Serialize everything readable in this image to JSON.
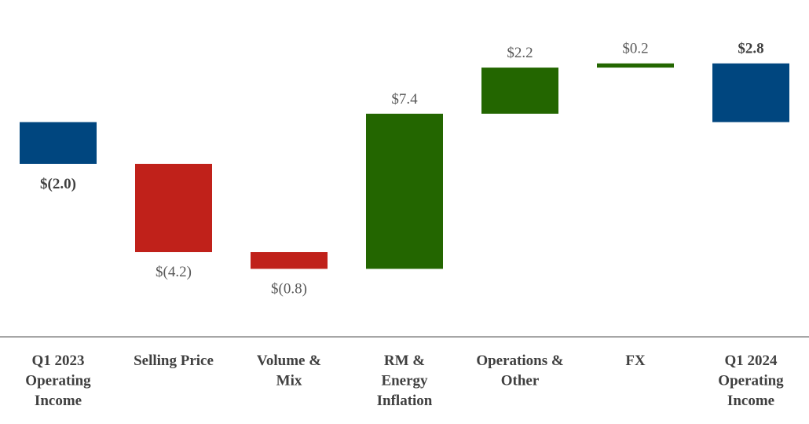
{
  "chart_data": {
    "type": "waterfall",
    "title": "",
    "xlabel": "",
    "ylabel": "",
    "ylim": [
      -7.5,
      2.8
    ],
    "colors": {
      "total": "#00467f",
      "decrease": "#c0211a",
      "increase": "#236600",
      "axis": "#a6a6a6"
    },
    "bars": [
      {
        "category_lines": [
          "Q1 2023",
          "Operating",
          "Income"
        ],
        "kind": "total",
        "start": 0,
        "end": -2.0,
        "label": "$(2.0)",
        "label_bold": true
      },
      {
        "category_lines": [
          "Selling Price"
        ],
        "kind": "decrease",
        "start": -2.0,
        "end": -6.2,
        "label": "$(4.2)",
        "label_bold": false
      },
      {
        "category_lines": [
          "Volume &",
          "Mix"
        ],
        "kind": "decrease",
        "start": -6.2,
        "end": -7.0,
        "label": "$(0.8)",
        "label_bold": false
      },
      {
        "category_lines": [
          "RM &",
          "Energy",
          "Inflation"
        ],
        "kind": "increase",
        "start": -7.0,
        "end": 0.4,
        "label": "$7.4",
        "label_bold": false
      },
      {
        "category_lines": [
          "Operations &",
          "Other"
        ],
        "kind": "increase",
        "start": 0.4,
        "end": 2.6,
        "label": "$2.2",
        "label_bold": false
      },
      {
        "category_lines": [
          "FX"
        ],
        "kind": "increase",
        "start": 2.6,
        "end": 2.8,
        "label": "$0.2",
        "label_bold": false
      },
      {
        "category_lines": [
          "Q1 2024",
          "Operating",
          "Income"
        ],
        "kind": "total",
        "start": 0,
        "end": 2.8,
        "label": "$2.8",
        "label_bold": true
      }
    ]
  }
}
